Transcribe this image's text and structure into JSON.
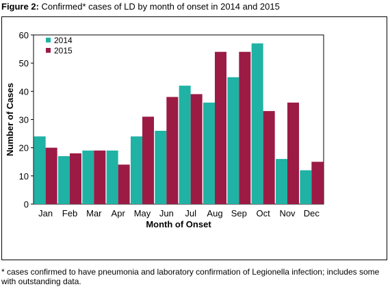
{
  "figure": {
    "title_prefix": "Figure 2:",
    "title_text": " Confirmed* cases of LD by month of onset in 2014 and 2015",
    "footnote": "* cases confirmed to have pneumonia and laboratory confirmation of Legionella infection; includes some with outstanding data."
  },
  "chart_data": {
    "type": "bar",
    "title": "",
    "xlabel": "Month of Onset",
    "ylabel": "Number of Cases",
    "ylim": [
      0,
      60
    ],
    "yticks": [
      0,
      10,
      20,
      30,
      40,
      50,
      60
    ],
    "grid": false,
    "legend_position": "top-left",
    "categories": [
      "Jan",
      "Feb",
      "Mar",
      "Apr",
      "May",
      "Jun",
      "Jul",
      "Aug",
      "Sep",
      "Oct",
      "Nov",
      "Dec"
    ],
    "series": [
      {
        "name": "2014",
        "color": "#20B2A4",
        "values": [
          24,
          17,
          19,
          19,
          24,
          26,
          42,
          36,
          45,
          57,
          16,
          12
        ]
      },
      {
        "name": "2015",
        "color": "#9B1B45",
        "values": [
          20,
          18,
          19,
          14,
          31,
          38,
          39,
          54,
          54,
          33,
          36,
          15
        ]
      }
    ]
  }
}
